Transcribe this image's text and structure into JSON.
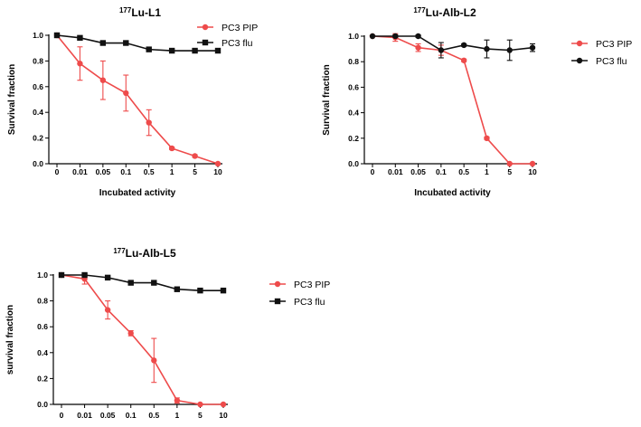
{
  "chart_data": [
    {
      "type": "line",
      "title": {
        "sup": "177",
        "main": "Lu-L1"
      },
      "xlabel": "Incubated activity",
      "ylabel": "Survival fraction",
      "categories": [
        "0",
        "0.01",
        "0.05",
        "0.1",
        "0.5",
        "1",
        "5",
        "10"
      ],
      "ylim": [
        0,
        1.0
      ],
      "yticks": [
        "0.0",
        "0.2",
        "0.4",
        "0.6",
        "0.8",
        "1.0"
      ],
      "legend_position": "right",
      "series": [
        {
          "name": "PC3 PIP",
          "color": "#ee4b4b",
          "marker": "circle",
          "values": [
            1.0,
            0.78,
            0.65,
            0.55,
            0.32,
            0.12,
            0.06,
            0.0
          ],
          "errors": [
            0.01,
            0.13,
            0.15,
            0.14,
            0.1,
            0.01,
            0.01,
            0.0
          ]
        },
        {
          "name": "PC3 flu",
          "color": "#111111",
          "marker": "square",
          "values": [
            1.0,
            0.98,
            0.94,
            0.94,
            0.89,
            0.88,
            0.88,
            0.88
          ],
          "errors": [
            0.0,
            0.01,
            0.01,
            0.01,
            0.01,
            0.01,
            0.01,
            0.01
          ]
        }
      ]
    },
    {
      "type": "line",
      "title": {
        "sup": "177",
        "main": "Lu-Alb-L2"
      },
      "xlabel": "Incubated activity",
      "ylabel": "Survival fraction",
      "categories": [
        "0",
        "0.01",
        "0.05",
        "0.1",
        "0.5",
        "1",
        "5",
        "10"
      ],
      "ylim": [
        0,
        1.0
      ],
      "yticks": [
        "0.0",
        "0.2",
        "0.4",
        "0.6",
        "0.8",
        "1.0"
      ],
      "legend_position": "right",
      "series": [
        {
          "name": "PC3 PIP",
          "color": "#ee4b4b",
          "marker": "circle",
          "values": [
            1.0,
            0.99,
            0.91,
            0.89,
            0.81,
            0.2,
            0.0,
            0.0
          ],
          "errors": [
            0.0,
            0.03,
            0.03,
            0.04,
            0.01,
            0.01,
            0.0,
            0.0
          ]
        },
        {
          "name": "PC3 flu",
          "color": "#111111",
          "marker": "circle",
          "values": [
            1.0,
            1.0,
            1.0,
            0.89,
            0.93,
            0.9,
            0.89,
            0.91
          ],
          "errors": [
            0.0,
            0.01,
            0.01,
            0.06,
            0.01,
            0.07,
            0.08,
            0.03
          ]
        }
      ]
    },
    {
      "type": "line",
      "title": {
        "sup": "177",
        "main": "Lu-Alb-L5"
      },
      "xlabel": "",
      "ylabel": "survival fraction",
      "categories": [
        "0",
        "0.01",
        "0.05",
        "0.1",
        "0.5",
        "1",
        "5",
        "10"
      ],
      "ylim": [
        0,
        1.0
      ],
      "yticks": [
        "0.0",
        "0.2",
        "0.4",
        "0.6",
        "0.8",
        "1.0"
      ],
      "legend_position": "right",
      "series": [
        {
          "name": "PC3 PIP",
          "color": "#ee4b4b",
          "marker": "circle",
          "values": [
            1.0,
            0.97,
            0.73,
            0.55,
            0.34,
            0.03,
            0.0,
            0.0
          ],
          "errors": [
            0.01,
            0.04,
            0.07,
            0.02,
            0.17,
            0.02,
            0.0,
            0.0
          ]
        },
        {
          "name": "PC3 flu",
          "color": "#111111",
          "marker": "square",
          "values": [
            1.0,
            1.0,
            0.98,
            0.94,
            0.94,
            0.89,
            0.88,
            0.88
          ],
          "errors": [
            0.0,
            0.01,
            0.01,
            0.01,
            0.01,
            0.01,
            0.01,
            0.01
          ]
        }
      ]
    }
  ]
}
